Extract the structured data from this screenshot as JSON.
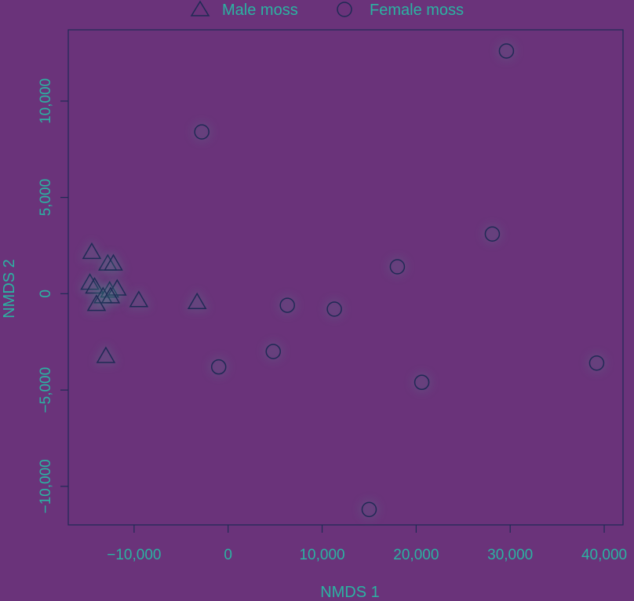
{
  "chart_data": {
    "type": "scatter",
    "xlabel": "NMDS 1",
    "ylabel": "NMDS 2",
    "xlim": [
      -17000,
      42000
    ],
    "ylim": [
      -12000,
      13700
    ],
    "x_ticks": [
      -10000,
      0,
      10000,
      20000,
      30000,
      40000
    ],
    "x_tick_labels": [
      "−10,000",
      "0",
      "10,000",
      "20,000",
      "30,000",
      "40,000"
    ],
    "y_ticks": [
      -10000,
      -5000,
      0,
      5000,
      10000
    ],
    "y_tick_labels": [
      "−10,000",
      "−5,000",
      "0",
      "5,000",
      "10,000"
    ],
    "legend_position": "top",
    "series": [
      {
        "name": "Male moss",
        "marker": "triangle",
        "color": "#1f2a55",
        "points": [
          [
            -14500,
            2200
          ],
          [
            -12800,
            1600
          ],
          [
            -12200,
            1600
          ],
          [
            -14700,
            600
          ],
          [
            -14200,
            400
          ],
          [
            -12600,
            200
          ],
          [
            -11800,
            300
          ],
          [
            -13300,
            -100
          ],
          [
            -12500,
            -100
          ],
          [
            -14000,
            -500
          ],
          [
            -9500,
            -300
          ],
          [
            -3300,
            -400
          ],
          [
            -13000,
            -3200
          ]
        ]
      },
      {
        "name": "Female moss",
        "marker": "circle",
        "color": "#1f2a55",
        "points": [
          [
            29600,
            12600
          ],
          [
            -2800,
            8400
          ],
          [
            28100,
            3100
          ],
          [
            18000,
            1400
          ],
          [
            6300,
            -600
          ],
          [
            11300,
            -800
          ],
          [
            4800,
            -3000
          ],
          [
            -1000,
            -3800
          ],
          [
            20600,
            -4600
          ],
          [
            39200,
            -3600
          ],
          [
            15000,
            -11200
          ]
        ]
      }
    ]
  }
}
